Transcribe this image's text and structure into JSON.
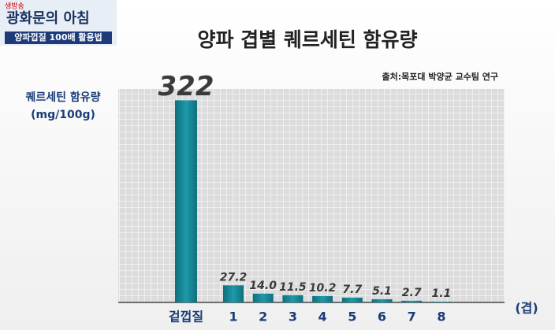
{
  "logo": {
    "badge": "생방송",
    "show": "광화문의 아침",
    "topic": "양파껍질 100배 활용법"
  },
  "chart_data": {
    "type": "bar",
    "title": "양파 겹별 퀘르세틴 함유량",
    "subtitle": "출처:목포대 박양균 교수팀 연구",
    "y_label": [
      "퀘르세틴 함유량",
      "(mg/100g)"
    ],
    "x_label": "(겹)",
    "categories": [
      "겉껍질",
      "1",
      "2",
      "3",
      "4",
      "5",
      "6",
      "7",
      "8"
    ],
    "values": [
      322,
      27.2,
      14.0,
      11.5,
      10.2,
      7.7,
      5.1,
      2.7,
      1.1
    ],
    "value_labels": [
      "322",
      "27.2",
      "14.0",
      "11.5",
      "10.2",
      "7.7",
      "5.1",
      "2.7",
      "1.1"
    ],
    "color": "#168a98",
    "ylim": [
      0,
      340
    ]
  }
}
